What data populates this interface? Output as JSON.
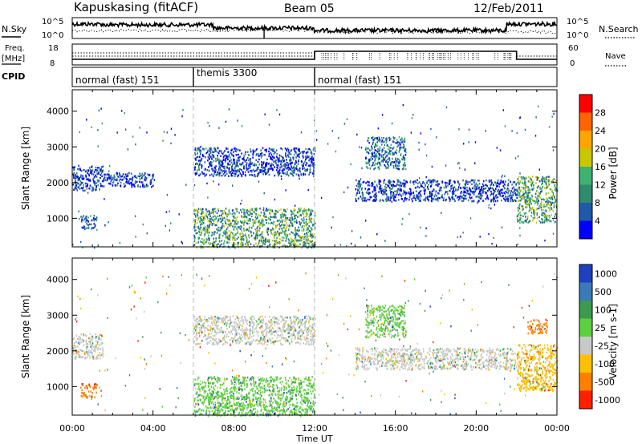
{
  "header": {
    "title": "Kapuskasing (fitACF)",
    "beam": "Beam 05",
    "date": "12/Feb/2011"
  },
  "noise_panel": {
    "left_label": "N.Sky",
    "right_label": "N.Search",
    "left_ticks": [
      "10^5",
      "10^0"
    ],
    "right_ticks": [
      "10^5",
      "10^0"
    ]
  },
  "freq_panel": {
    "left_label_line1": "Freq.",
    "left_label_line2": "[MHz]",
    "right_label": "Nave",
    "left_ticks": [
      "18",
      "8"
    ],
    "right_ticks": [
      "60",
      "0"
    ]
  },
  "cpid_panel": {
    "label": "CPID",
    "segments": [
      {
        "name": "normal (fast) 151",
        "start_h": 0,
        "end_h": 6
      },
      {
        "name": "themis 3300",
        "start_h": 6,
        "end_h": 12
      },
      {
        "name": "normal (fast) 151",
        "start_h": 12,
        "end_h": 24
      }
    ]
  },
  "colorbars": {
    "power": {
      "label": "Power [dB]",
      "ticks": [
        "4",
        "8",
        "12",
        "16",
        "20",
        "24",
        "28"
      ],
      "colors": [
        "#0000ff",
        "#1e5aa8",
        "#2e8b6e",
        "#3cb371",
        "#c8c800",
        "#ffa500",
        "#ff6400",
        "#ff0000"
      ]
    },
    "velocity": {
      "label": "Velocity [m s-1]",
      "ticks": [
        "1000",
        "500",
        "100",
        "25",
        "-25",
        "-100",
        "-500",
        "-1000"
      ],
      "colors": [
        "#2040c0",
        "#3a7ab8",
        "#3c9a50",
        "#5cd040",
        "#c8c8c8",
        "#ffc000",
        "#ff8000",
        "#ff2000"
      ]
    }
  },
  "chart_data": [
    {
      "type": "heatmap",
      "name": "power",
      "ylabel": "Slant Range [km]",
      "xlabel": "Time UT",
      "xlim": [
        0,
        24
      ],
      "ylim": [
        200,
        4600
      ],
      "x_ticks": [
        "00:00",
        "04:00",
        "08:00",
        "12:00",
        "16:00",
        "20:00",
        "00:00"
      ],
      "y_ticks": [
        "1000",
        "2000",
        "3000",
        "4000"
      ],
      "features": [
        {
          "t_start": 0.0,
          "t_end": 1.5,
          "range_min": 1800,
          "range_max": 2500,
          "level_db": 8
        },
        {
          "t_start": 0.4,
          "t_end": 1.2,
          "range_min": 700,
          "range_max": 1100,
          "level_db": 12
        },
        {
          "t_start": 1.5,
          "t_end": 4.0,
          "range_min": 1900,
          "range_max": 2300,
          "level_db": 6
        },
        {
          "t_start": 6.0,
          "t_end": 12.0,
          "range_min": 200,
          "range_max": 1300,
          "level_db": 16
        },
        {
          "t_start": 6.0,
          "t_end": 12.0,
          "range_min": 2200,
          "range_max": 3000,
          "level_db": 8
        },
        {
          "t_start": 14.0,
          "t_end": 22.0,
          "range_min": 1500,
          "range_max": 2100,
          "level_db": 6
        },
        {
          "t_start": 14.5,
          "t_end": 16.5,
          "range_min": 2400,
          "range_max": 3300,
          "level_db": 10
        },
        {
          "t_start": 22.0,
          "t_end": 24.0,
          "range_min": 900,
          "range_max": 2200,
          "level_db": 14
        }
      ]
    },
    {
      "type": "heatmap",
      "name": "velocity",
      "ylabel": "Slant Range [km]",
      "xlabel": "Time UT",
      "xlim": [
        0,
        24
      ],
      "ylim": [
        200,
        4600
      ],
      "x_ticks": [
        "00:00",
        "04:00",
        "08:00",
        "12:00",
        "16:00",
        "20:00",
        "00:00"
      ],
      "y_ticks": [
        "1000",
        "2000",
        "3000",
        "4000"
      ],
      "features": [
        {
          "t_start": 0.0,
          "t_end": 1.5,
          "range_min": 1800,
          "range_max": 2500,
          "velocity": 0
        },
        {
          "t_start": 0.4,
          "t_end": 1.2,
          "range_min": 700,
          "range_max": 1100,
          "velocity": -300
        },
        {
          "t_start": 6.0,
          "t_end": 12.0,
          "range_min": 200,
          "range_max": 1300,
          "velocity": 50
        },
        {
          "t_start": 6.0,
          "t_end": 12.0,
          "range_min": 2200,
          "range_max": 3000,
          "velocity": 0
        },
        {
          "t_start": 14.0,
          "t_end": 22.0,
          "range_min": 1500,
          "range_max": 2100,
          "velocity": 0
        },
        {
          "t_start": 14.5,
          "t_end": 16.5,
          "range_min": 2400,
          "range_max": 3300,
          "velocity": 100
        },
        {
          "t_start": 22.0,
          "t_end": 24.0,
          "range_min": 900,
          "range_max": 2200,
          "velocity": -50
        },
        {
          "t_start": 22.5,
          "t_end": 23.5,
          "range_min": 2500,
          "range_max": 2900,
          "velocity": -300
        }
      ]
    }
  ]
}
